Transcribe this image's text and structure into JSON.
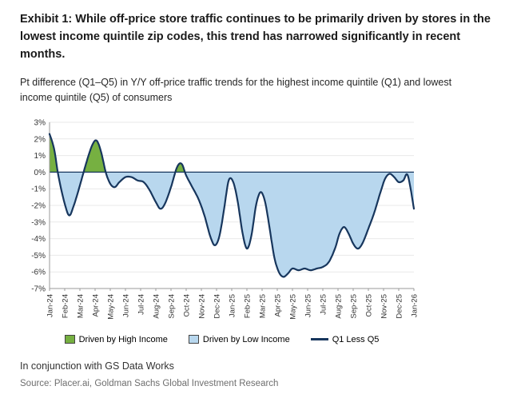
{
  "exhibit": {
    "title": "Exhibit 1: While off-price store traffic continues to be primarily driven by stores in the lowest income quintile zip codes, this trend has narrowed significantly in recent months.",
    "subtitle": "Pt difference (Q1–Q5) in Y/Y off-price traffic trends for the highest income quintile (Q1) and lowest income quintile (Q5) of consumers",
    "footnote": "In conjunction with GS Data Works",
    "source": "Source: Placer.ai, Goldman Sachs Global Investment Research"
  },
  "chart_data": {
    "type": "area",
    "title": "",
    "xlabel": "",
    "ylabel": "",
    "ylim": [
      -7,
      3
    ],
    "yticks": [
      3,
      2,
      1,
      0,
      -1,
      -2,
      -3,
      -4,
      -5,
      -6,
      -7
    ],
    "ytick_suffix": "%",
    "grid": "horizontal-light",
    "legend_position": "bottom",
    "x_labels": [
      "Jan-24",
      "Feb-24",
      "Mar-24",
      "Apr-24",
      "May-24",
      "Jun-24",
      "Jul-24",
      "Aug-24",
      "Sep-24",
      "Oct-24",
      "Nov-24",
      "Dec-24",
      "Jan-25",
      "Feb-25",
      "Mar-25",
      "Apr-25",
      "May-25",
      "Jun-25",
      "Jul-25",
      "Aug-25",
      "Sep-25",
      "Oct-25",
      "Nov-25",
      "Dec-25",
      "Jan-26"
    ],
    "x_index_origin": "0 = Jan-24, 24 = Jan-26",
    "fills": {
      "positive": {
        "label": "Driven by High Income",
        "color": "#76b041"
      },
      "negative": {
        "label": "Driven by Low Income",
        "color": "#b8d7ee"
      }
    },
    "series": [
      {
        "name": "Q1 Less Q5",
        "color": "#17365d",
        "points": [
          [
            0.0,
            2.3
          ],
          [
            0.3,
            1.4
          ],
          [
            0.6,
            -0.3
          ],
          [
            1.0,
            -1.9
          ],
          [
            1.3,
            -2.6
          ],
          [
            1.6,
            -2.0
          ],
          [
            2.0,
            -0.8
          ],
          [
            2.4,
            0.5
          ],
          [
            2.8,
            1.6
          ],
          [
            3.1,
            1.9
          ],
          [
            3.4,
            1.2
          ],
          [
            3.7,
            0.0
          ],
          [
            4.0,
            -0.7
          ],
          [
            4.3,
            -0.9
          ],
          [
            4.6,
            -0.6
          ],
          [
            5.0,
            -0.3
          ],
          [
            5.4,
            -0.3
          ],
          [
            5.8,
            -0.5
          ],
          [
            6.2,
            -0.6
          ],
          [
            6.6,
            -1.1
          ],
          [
            7.0,
            -1.8
          ],
          [
            7.3,
            -2.2
          ],
          [
            7.6,
            -1.9
          ],
          [
            8.0,
            -0.9
          ],
          [
            8.4,
            0.3
          ],
          [
            8.7,
            0.5
          ],
          [
            9.0,
            -0.2
          ],
          [
            9.4,
            -0.9
          ],
          [
            9.8,
            -1.6
          ],
          [
            10.2,
            -2.6
          ],
          [
            10.6,
            -3.9
          ],
          [
            10.9,
            -4.4
          ],
          [
            11.2,
            -3.8
          ],
          [
            11.5,
            -2.2
          ],
          [
            11.8,
            -0.5
          ],
          [
            12.1,
            -0.6
          ],
          [
            12.4,
            -1.8
          ],
          [
            12.7,
            -3.6
          ],
          [
            13.0,
            -4.6
          ],
          [
            13.3,
            -3.8
          ],
          [
            13.6,
            -2.0
          ],
          [
            13.9,
            -1.2
          ],
          [
            14.2,
            -1.8
          ],
          [
            14.5,
            -3.4
          ],
          [
            14.8,
            -5.1
          ],
          [
            15.1,
            -6.0
          ],
          [
            15.4,
            -6.3
          ],
          [
            15.7,
            -6.1
          ],
          [
            16.0,
            -5.8
          ],
          [
            16.4,
            -5.9
          ],
          [
            16.8,
            -5.8
          ],
          [
            17.2,
            -5.9
          ],
          [
            17.6,
            -5.8
          ],
          [
            18.0,
            -5.7
          ],
          [
            18.4,
            -5.4
          ],
          [
            18.8,
            -4.6
          ],
          [
            19.1,
            -3.7
          ],
          [
            19.4,
            -3.3
          ],
          [
            19.7,
            -3.7
          ],
          [
            20.0,
            -4.3
          ],
          [
            20.3,
            -4.6
          ],
          [
            20.6,
            -4.3
          ],
          [
            21.0,
            -3.4
          ],
          [
            21.4,
            -2.4
          ],
          [
            21.8,
            -1.2
          ],
          [
            22.1,
            -0.4
          ],
          [
            22.4,
            -0.1
          ],
          [
            22.7,
            -0.3
          ],
          [
            23.0,
            -0.6
          ],
          [
            23.3,
            -0.5
          ],
          [
            23.6,
            -0.2
          ],
          [
            24.0,
            -2.2
          ]
        ]
      }
    ],
    "legend": [
      {
        "label": "Driven by High Income",
        "color": "#76b041",
        "type": "box"
      },
      {
        "label": "Driven by Low Income",
        "color": "#b8d7ee",
        "type": "box"
      },
      {
        "label": "Q1 Less Q5",
        "color": "#17365d",
        "type": "line"
      }
    ]
  }
}
